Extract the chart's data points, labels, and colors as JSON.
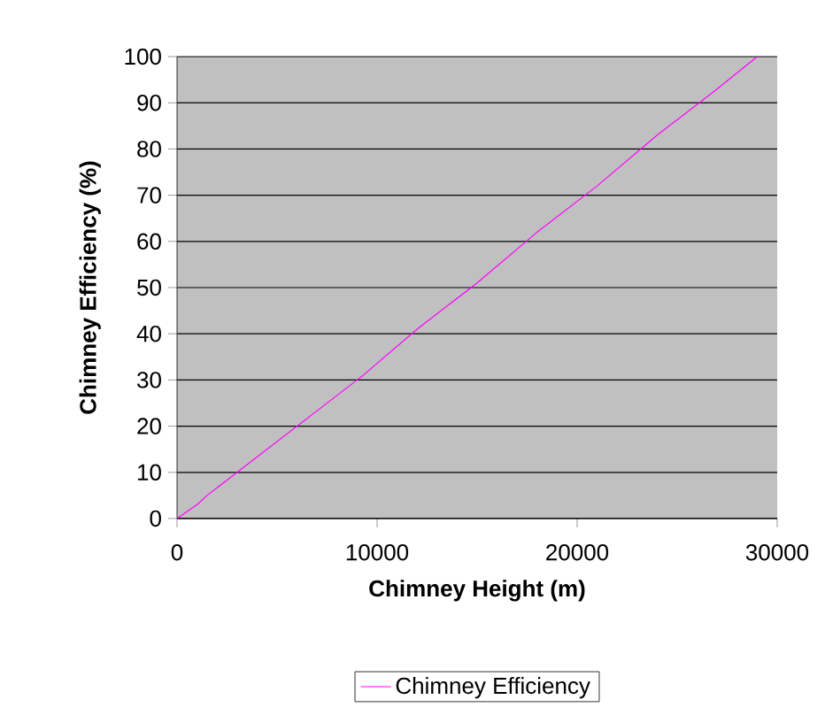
{
  "chart_data": {
    "type": "line",
    "xlabel": "Chimney Height (m)",
    "ylabel": "Chimney Efficiency (%)",
    "series": [
      {
        "name": "Chimney Efficiency",
        "color": "#ff00ff",
        "x": [
          0,
          1000,
          1500,
          3000,
          6000,
          9000,
          9300,
          12000,
          15000,
          18000,
          21000,
          24000,
          27000,
          29000
        ],
        "values": [
          0,
          3,
          5,
          10,
          20,
          30,
          31,
          41,
          51,
          62,
          72,
          83,
          93,
          100
        ]
      }
    ],
    "xlim": [
      0,
      30000
    ],
    "ylim": [
      0,
      100
    ],
    "xticks": [
      0,
      10000,
      20000,
      30000
    ],
    "yticks": [
      0,
      10,
      20,
      30,
      40,
      50,
      60,
      70,
      80,
      90,
      100
    ],
    "grid": "y",
    "legend": "bottom",
    "marker": "none",
    "line_style": "solid"
  }
}
